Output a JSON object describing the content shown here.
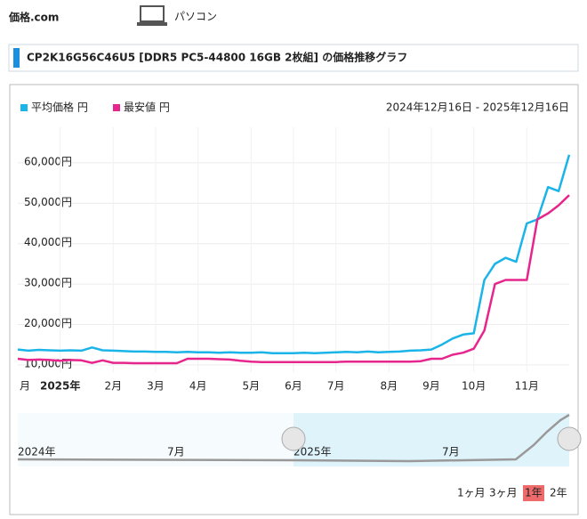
{
  "header": {
    "logo": "価格.com",
    "section": "パソコン",
    "title": "CP2K16G56C46U5 [DDR5 PC5-44800 16GB 2枚組] の価格推移グラフ"
  },
  "chart_data": {
    "type": "line",
    "date_range": "2024年12月16日 - 2025年12月16日",
    "categories": [
      "月",
      null,
      null,
      null,
      "2025年",
      null,
      null,
      null,
      null,
      "2月",
      null,
      null,
      null,
      "3月",
      null,
      null,
      null,
      "4月",
      null,
      null,
      null,
      null,
      "5月",
      null,
      null,
      null,
      "6月",
      null,
      null,
      null,
      "7月",
      null,
      null,
      null,
      null,
      "8月",
      null,
      null,
      null,
      "9月",
      null,
      null,
      null,
      "10月",
      null,
      null,
      null,
      null,
      "11月",
      null,
      null,
      null,
      null
    ],
    "series": [
      {
        "name": "平均価格 円",
        "color": "#1bb4e8",
        "values": [
          13800,
          13500,
          13700,
          13600,
          13500,
          13600,
          13500,
          14300,
          13600,
          13500,
          13400,
          13300,
          13300,
          13200,
          13200,
          13100,
          13200,
          13100,
          13100,
          13000,
          13100,
          13000,
          13000,
          13100,
          12900,
          12900,
          12900,
          13000,
          12900,
          13000,
          13100,
          13200,
          13100,
          13300,
          13100,
          13200,
          13300,
          13500,
          13600,
          13800,
          15000,
          16500,
          17500,
          17800,
          31000,
          35000,
          36500,
          35500,
          45000,
          46000,
          54000,
          53000,
          62000
        ]
      },
      {
        "name": "最安値 円",
        "color": "#e6268c",
        "values": [
          11500,
          11200,
          11300,
          11200,
          11000,
          11200,
          11100,
          10500,
          11100,
          10500,
          10500,
          10400,
          10400,
          10400,
          10400,
          10400,
          11500,
          11500,
          11500,
          11400,
          11300,
          11000,
          10800,
          10700,
          10700,
          10700,
          10700,
          10700,
          10700,
          10700,
          10700,
          10800,
          10800,
          10800,
          10800,
          10800,
          10800,
          10800,
          10900,
          11500,
          11500,
          12500,
          13000,
          14000,
          18500,
          30000,
          31000,
          31000,
          31000,
          46000,
          47500,
          49500,
          52000
        ]
      }
    ],
    "ylim": [
      8200,
      68800
    ],
    "yticks": [
      {
        "value": 10000,
        "label": "10,000円"
      },
      {
        "value": 20000,
        "label": "20,000円"
      },
      {
        "value": 30000,
        "label": "30,000円"
      },
      {
        "value": 40000,
        "label": "40,000円"
      },
      {
        "value": 50000,
        "label": "50,000円"
      },
      {
        "value": 60000,
        "label": "60,000円"
      }
    ],
    "grid": true,
    "navigator_labels": [
      "2024年",
      "7月",
      "2025年",
      "7月"
    ],
    "range_buttons": [
      "1ヶ月",
      "3ヶ月",
      "1年",
      "2年"
    ],
    "selected_button": "1年"
  }
}
